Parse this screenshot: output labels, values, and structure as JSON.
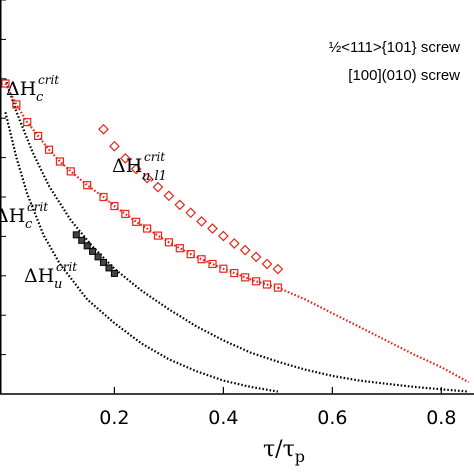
{
  "colors": {
    "black_series": "#000000",
    "red_series": "#e8251a",
    "axis": "#000000"
  },
  "legend": {
    "entry_1": "½<111>{101} screw",
    "entry_2": "[100](010) screw"
  },
  "axis": {
    "xlabel_main": "τ/τ",
    "xlabel_sub": "p"
  },
  "annotations": {
    "black_c": {
      "base": "ΔH",
      "sub": "c",
      "sup": "crit"
    },
    "red_c": {
      "base": "ΔH",
      "sub": "c",
      "sup": "crit"
    },
    "red_u": {
      "base": "ΔH",
      "sub": "u,l1",
      "sup": "crit"
    },
    "black_u": {
      "base": "ΔH",
      "sub": "u",
      "sup": "crit"
    }
  },
  "chart_data": {
    "type": "line",
    "title": "",
    "xlabel": "τ/τp",
    "ylabel": "",
    "xlim": [
      -0.01,
      0.86
    ],
    "ylim": [
      0,
      1
    ],
    "y_tick_labels_visible": false,
    "grid": false,
    "legend_placement": "top-right",
    "x_ticks": [
      0.2,
      0.4,
      0.6,
      0.8
    ],
    "x_tick_labels": [
      "0.2",
      "0.4",
      "0.6",
      "0.8"
    ],
    "series": [
      {
        "name": "½<111>{101} screw",
        "color": "#000000",
        "style": "dotted-line",
        "x": [
          0.0,
          0.02,
          0.05,
          0.08,
          0.12,
          0.16,
          0.2,
          0.25,
          0.3,
          0.35,
          0.4,
          0.45,
          0.5,
          0.55,
          0.6,
          0.65,
          0.7,
          0.75,
          0.8,
          0.85
        ],
        "y": [
          0.8,
          0.717,
          0.613,
          0.528,
          0.441,
          0.374,
          0.318,
          0.262,
          0.215,
          0.172,
          0.136,
          0.105,
          0.082,
          0.062,
          0.046,
          0.034,
          0.026,
          0.018,
          0.012,
          0.006
        ]
      },
      {
        "name": "½<111>{101} screw",
        "color": "#000000",
        "style": "dotted-line",
        "x": [
          0.0,
          0.02,
          0.04,
          0.07,
          0.1,
          0.15,
          0.2,
          0.25,
          0.3,
          0.35,
          0.4,
          0.45,
          0.5
        ],
        "y": [
          0.715,
          0.601,
          0.508,
          0.403,
          0.33,
          0.24,
          0.18,
          0.128,
          0.088,
          0.058,
          0.034,
          0.018,
          0.006
        ]
      },
      {
        "name": "[100](010) screw",
        "color": "#e8251a",
        "style": "dotted-line-squares",
        "x": [
          0.0,
          0.02,
          0.04,
          0.06,
          0.08,
          0.1,
          0.12,
          0.15,
          0.18,
          0.2,
          0.22,
          0.24,
          0.26,
          0.28,
          0.3,
          0.32,
          0.34,
          0.36,
          0.38,
          0.4,
          0.42,
          0.44,
          0.46,
          0.48,
          0.5
        ],
        "y": [
          0.788,
          0.735,
          0.69,
          0.655,
          0.62,
          0.59,
          0.565,
          0.53,
          0.5,
          0.477,
          0.457,
          0.437,
          0.42,
          0.402,
          0.385,
          0.37,
          0.355,
          0.342,
          0.33,
          0.318,
          0.307,
          0.296,
          0.286,
          0.278,
          0.27
        ]
      },
      {
        "name": "[100](010) screw",
        "color": "#e8251a",
        "style": "dotted-line",
        "x": [
          0.5,
          0.55,
          0.6,
          0.65,
          0.7,
          0.75,
          0.8,
          0.85
        ],
        "y": [
          0.27,
          0.24,
          0.205,
          0.17,
          0.135,
          0.1,
          0.068,
          0.03
        ]
      },
      {
        "name": "[100](010) screw",
        "color": "#e8251a",
        "style": "diamonds",
        "x": [
          0.18,
          0.2,
          0.22,
          0.24,
          0.26,
          0.28,
          0.3,
          0.32,
          0.34,
          0.36,
          0.38,
          0.4,
          0.42,
          0.44,
          0.46,
          0.48,
          0.5
        ],
        "y": [
          0.672,
          0.629,
          0.598,
          0.571,
          0.548,
          0.525,
          0.503,
          0.48,
          0.46,
          0.438,
          0.42,
          0.401,
          0.382,
          0.365,
          0.348,
          0.33,
          0.317
        ]
      },
      {
        "name": "[100](010) screw",
        "color": "#000000",
        "style": "black-squares",
        "x": [
          0.13,
          0.14,
          0.15,
          0.16,
          0.17,
          0.18,
          0.19,
          0.2
        ],
        "y": [
          0.404,
          0.39,
          0.376,
          0.362,
          0.348,
          0.334,
          0.32,
          0.306
        ]
      }
    ]
  }
}
